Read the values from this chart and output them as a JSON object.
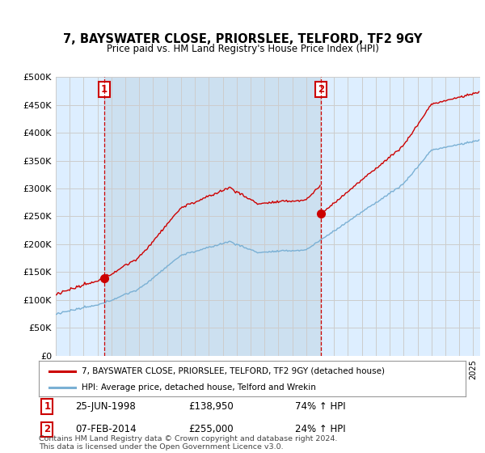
{
  "title": "7, BAYSWATER CLOSE, PRIORSLEE, TELFORD, TF2 9GY",
  "subtitle": "Price paid vs. HM Land Registry's House Price Index (HPI)",
  "legend_line1": "7, BAYSWATER CLOSE, PRIORSLEE, TELFORD, TF2 9GY (detached house)",
  "legend_line2": "HPI: Average price, detached house, Telford and Wrekin",
  "sale1_date": "25-JUN-1998",
  "sale1_price": "£138,950",
  "sale1_hpi": "74% ↑ HPI",
  "sale2_date": "07-FEB-2014",
  "sale2_price": "£255,000",
  "sale2_hpi": "24% ↑ HPI",
  "footnote": "Contains HM Land Registry data © Crown copyright and database right 2024.\nThis data is licensed under the Open Government Licence v3.0.",
  "hpi_color": "#7ab0d4",
  "price_paid_color": "#cc0000",
  "vline_color": "#cc0000",
  "grid_color": "#cccccc",
  "bg_color": "#ffffff",
  "plot_bg_color": "#ddeeff",
  "highlight_bg_color": "#cce0f0",
  "ylim": [
    0,
    500000
  ],
  "yticks": [
    0,
    50000,
    100000,
    150000,
    200000,
    250000,
    300000,
    350000,
    400000,
    450000,
    500000
  ],
  "sale1_t": 1998.46,
  "sale2_t": 2014.08,
  "sale1_y": 138950,
  "sale2_y": 255000,
  "xmin": 1995,
  "xmax": 2025.5
}
